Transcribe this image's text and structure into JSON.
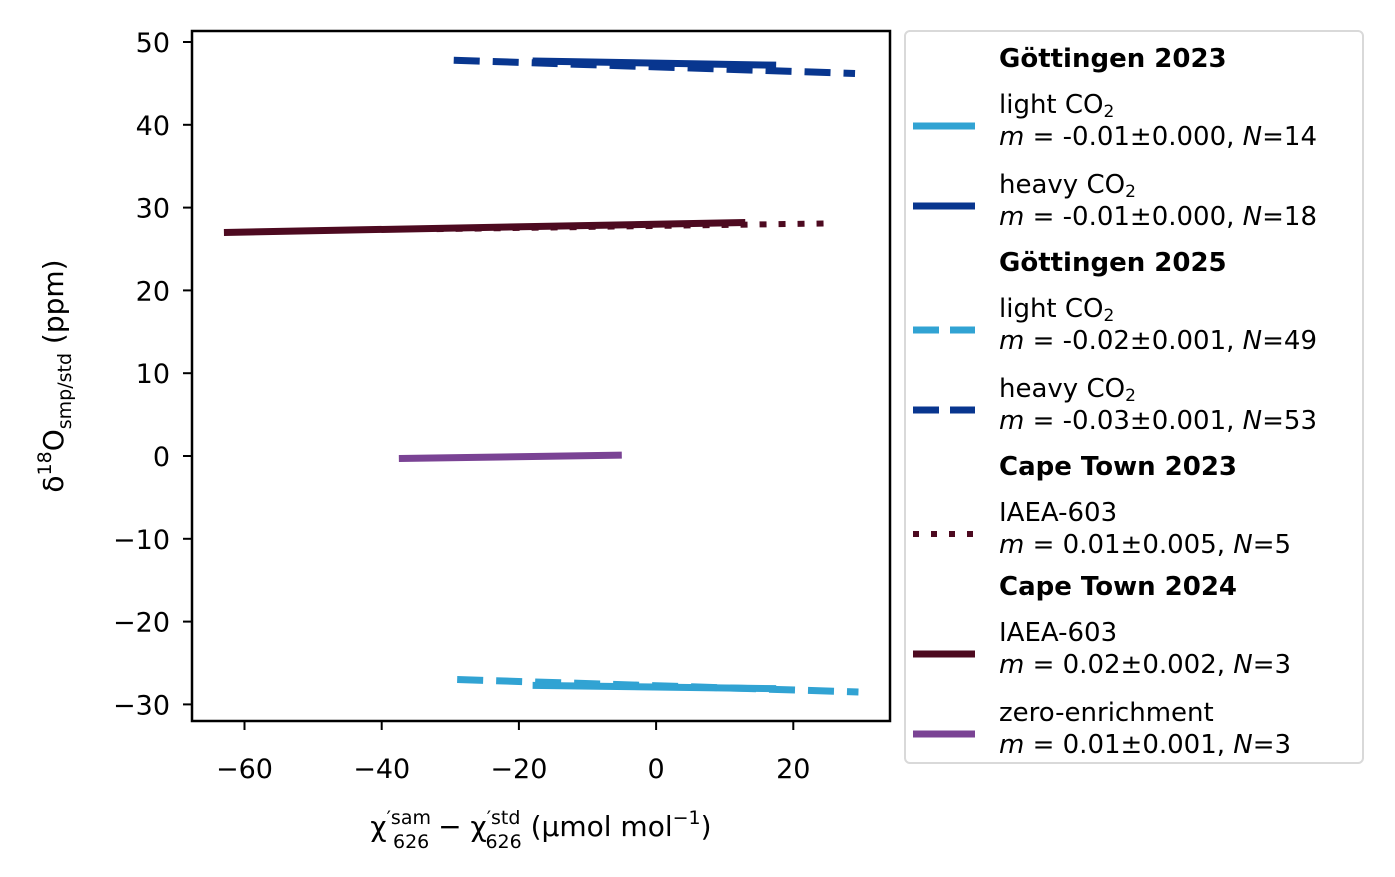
{
  "chart_data": {
    "type": "line",
    "xlabel": "χ′sam626 − χ′std626 (µmol mol⁻¹)",
    "xlabel_parts": {
      "chi": "χ",
      "sup1": "′sam",
      "sub1": "626",
      "minus": " − ",
      "sup2": "′std",
      "sub2": "626",
      "unit": " (µmol mol",
      "unit_sup": "−1",
      "unit_end": ")"
    },
    "ylabel": "δ18Osmp/std (ppm)",
    "ylabel_parts": {
      "delta": "δ",
      "sup": "18",
      "base": "O",
      "sub": "smp/std",
      "unit": " (ppm)"
    },
    "xlim": [
      -67,
      34
    ],
    "ylim": [
      -32,
      52
    ],
    "xticks": [
      -60,
      -40,
      -20,
      0,
      20
    ],
    "xtick_labels": [
      "−60",
      "−40",
      "−20",
      "0",
      "20"
    ],
    "yticks": [
      -30,
      -20,
      -10,
      0,
      10,
      20,
      30,
      40,
      50
    ],
    "ytick_labels": [
      "−30",
      "−20",
      "−10",
      "0",
      "10",
      "20",
      "30",
      "40",
      "50"
    ],
    "grid": false,
    "legend_position": "outside-right",
    "series": [
      {
        "key": "gott25_heavy",
        "x": [
          -29.5,
          29.0
        ],
        "y": [
          47.8,
          46.2
        ],
        "color": "#08368f",
        "dash": "26,13",
        "width": 7
      },
      {
        "key": "gott23_heavy",
        "x": [
          -18,
          17.5
        ],
        "y": [
          47.7,
          47.2
        ],
        "color": "#08368f",
        "dash": "",
        "width": 7
      },
      {
        "key": "ct23_iaea",
        "x": [
          -32,
          26
        ],
        "y": [
          27.4,
          28.1
        ],
        "color": "#4d0a20",
        "dash": "7,12",
        "width": 6
      },
      {
        "key": "ct24_iaea",
        "x": [
          -63,
          13
        ],
        "y": [
          27.0,
          28.2
        ],
        "color": "#4d0a20",
        "dash": "",
        "width": 7
      },
      {
        "key": "ct24_zero",
        "x": [
          -37.5,
          -5
        ],
        "y": [
          -0.3,
          0.1
        ],
        "color": "#7a4394",
        "dash": "",
        "width": 7
      },
      {
        "key": "gott25_light",
        "x": [
          -29,
          29.5
        ],
        "y": [
          -27.0,
          -28.5
        ],
        "color": "#31a3d3",
        "dash": "26,13",
        "width": 7
      },
      {
        "key": "gott23_light",
        "x": [
          -18,
          17.5
        ],
        "y": [
          -27.7,
          -28.1
        ],
        "color": "#31a3d3",
        "dash": "",
        "width": 7
      }
    ]
  },
  "legend": {
    "groups": [
      {
        "title": "Göttingen 2023",
        "entries": [
          {
            "label": "light CO",
            "sub": "2",
            "stats": [
              "m",
              " = -0.01±0.000, ",
              "N",
              "=14"
            ],
            "color": "#31a3d3",
            "style": "solid"
          },
          {
            "label": "heavy CO",
            "sub": "2",
            "stats": [
              "m",
              " = -0.01±0.000, ",
              "N",
              "=18"
            ],
            "color": "#08368f",
            "style": "solid"
          }
        ]
      },
      {
        "title": "Göttingen 2025",
        "entries": [
          {
            "label": "light CO",
            "sub": "2",
            "stats": [
              "m",
              " = -0.02±0.001, ",
              "N",
              "=49"
            ],
            "color": "#31a3d3",
            "style": "dashed"
          },
          {
            "label": "heavy CO",
            "sub": "2",
            "stats": [
              "m",
              " = -0.03±0.001, ",
              "N",
              "=53"
            ],
            "color": "#08368f",
            "style": "dashed"
          }
        ]
      },
      {
        "title": "Cape Town 2023",
        "entries": [
          {
            "label": "IAEA-603",
            "sub": "",
            "stats": [
              "m",
              " = 0.01±0.005, ",
              "N",
              "=5"
            ],
            "color": "#4d0a20",
            "style": "dotted"
          }
        ]
      },
      {
        "title": "Cape Town 2024",
        "entries": [
          {
            "label": "IAEA-603",
            "sub": "",
            "stats": [
              "m",
              " = 0.02±0.002, ",
              "N",
              "=3"
            ],
            "color": "#4d0a20",
            "style": "solid"
          },
          {
            "label": "zero-enrichment",
            "sub": "",
            "stats": [
              "m",
              " = 0.01±0.001, ",
              "N",
              "=3"
            ],
            "color": "#7a4394",
            "style": "solid"
          }
        ]
      }
    ]
  }
}
